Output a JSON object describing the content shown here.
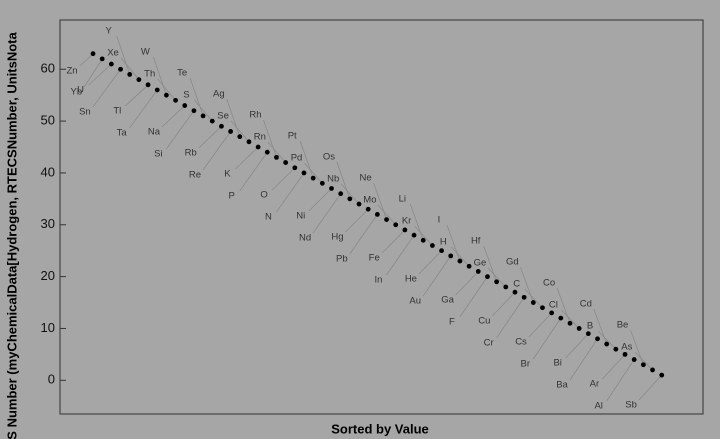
{
  "chart_data": {
    "type": "scatter",
    "y_label": "S Number (myChemicalData[Hydrogen, RTECSNumber, UnitsNota",
    "x_label": "Sorted by Value",
    "x": [
      1,
      2,
      3,
      4,
      5,
      6,
      7,
      8,
      9,
      10,
      11,
      12,
      13,
      14,
      15,
      16,
      17,
      18,
      19,
      20,
      21,
      22,
      23,
      24,
      25,
      26,
      27,
      28,
      29,
      30,
      31,
      32,
      33,
      34,
      35,
      36,
      37,
      38,
      39,
      40,
      41,
      42,
      43,
      44,
      45,
      46,
      47,
      48,
      49,
      50,
      51,
      52,
      53,
      54,
      55,
      56,
      57,
      58,
      59,
      60,
      61,
      62,
      63
    ],
    "values": [
      63,
      62,
      61,
      60,
      59,
      58,
      57,
      56,
      55,
      54,
      53,
      52,
      51,
      50,
      49,
      48,
      47,
      46,
      45,
      44,
      43,
      42,
      41,
      40,
      39,
      38,
      37,
      36,
      35,
      34,
      33,
      32,
      31,
      30,
      29,
      28,
      27,
      26,
      25,
      24,
      23,
      22,
      21,
      20,
      19,
      18,
      17,
      16,
      15,
      14,
      13,
      12,
      11,
      10,
      9,
      8,
      7,
      6,
      5,
      4,
      3,
      2,
      1
    ],
    "point_labels": [
      "Zn",
      "Yb",
      "U",
      "Sn",
      "Y",
      "Xe",
      "Tl",
      "Ta",
      "W",
      "Th",
      "Na",
      "Si",
      "Te",
      "S",
      "Rb",
      "Re",
      "Ag",
      "Se",
      "K",
      "P",
      "Rh",
      "Rn",
      "O",
      "N",
      "Pt",
      "Pd",
      "Ni",
      "Nd",
      "Os",
      "Nb",
      "Hg",
      "Pb",
      "Ne",
      "Mo",
      "Fe",
      "In",
      "Li",
      "Kr",
      "He",
      "Au",
      "I",
      "H",
      "Ga",
      "F",
      "Hf",
      "Ge",
      "Cu",
      "Cr",
      "Gd",
      "C",
      "Cs",
      "Br",
      "Co",
      "Cl",
      "Bi",
      "Ba",
      "Cd",
      "B",
      "Ar",
      "Al",
      "Be",
      "As",
      "Sb"
    ],
    "color": "#000000",
    "xlim": [
      -2.6,
      67.5
    ],
    "ylim": [
      -6.5,
      69.5
    ],
    "yticks": [
      0,
      10,
      20,
      30,
      40,
      50,
      60
    ]
  }
}
